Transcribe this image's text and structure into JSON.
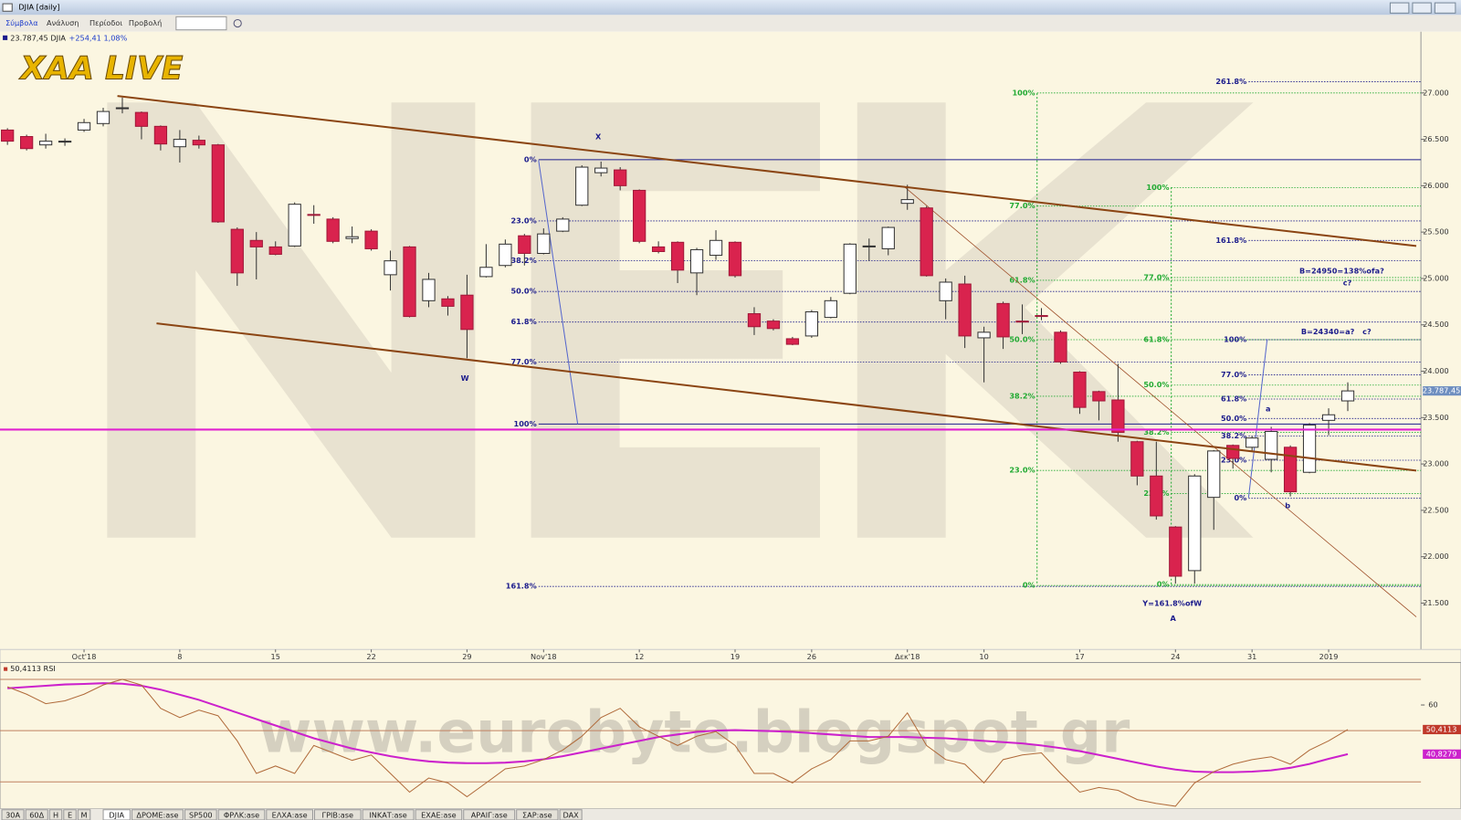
{
  "window": {
    "title": "DJIA [daily]",
    "menu": [
      "Σύμβολα",
      "Ανάλυση",
      "Περίοδοι",
      "Προβολή"
    ],
    "tabs": [
      "30A",
      "60Δ",
      "H",
      "E",
      "M",
      "DJIA",
      "ΔΡΟΜΕ:ase",
      "SP500",
      "ΦΡΛΚ:ase",
      "ΕΛΧΑ:ase",
      "ΓΡΙΒ:ase",
      "ΙΝΚΑΤ:ase",
      "ΕΧΑΕ:ase",
      "ΑΡΑΙΓ:ase",
      "ΣΑΡ:ase",
      "DAX"
    ]
  },
  "quote": {
    "price": "23.787,45 DJIA",
    "change": "+254,41 1,08%"
  },
  "logo": "XAA LIVE",
  "watermark": "www.eurobyte.blogspot.gr",
  "chart_data": {
    "type": "candlestick",
    "open": [
      26600,
      26530,
      26440,
      26470,
      26600,
      26670,
      26830,
      26790,
      26640,
      26420,
      26490,
      26440,
      25530,
      25410,
      25340,
      25350,
      25690,
      25640,
      25430,
      25510,
      25040,
      25340,
      24760,
      24780,
      24820,
      25020,
      25140,
      25460,
      25270,
      25510,
      25790,
      26140,
      26170,
      25950,
      25340,
      25390,
      25060,
      25250,
      25390,
      24620,
      24540,
      24350,
      24380,
      24580,
      24840,
      25340,
      25320,
      25810,
      25760,
      24760,
      24940,
      24360,
      24730,
      24540,
      24600,
      24420,
      23990,
      23780,
      23690,
      23240,
      22870,
      22320,
      21850,
      22640,
      23200,
      23180,
      23050,
      23180,
      22910,
      23470,
      23680
    ],
    "high": [
      26620,
      26550,
      26560,
      26510,
      26720,
      26840,
      26950,
      26800,
      26650,
      26600,
      26540,
      26450,
      25550,
      25500,
      25400,
      25820,
      25790,
      25660,
      25560,
      25530,
      25300,
      25350,
      25060,
      24810,
      25040,
      25370,
      25420,
      25480,
      25540,
      25660,
      26220,
      26260,
      26200,
      25960,
      25400,
      25400,
      25330,
      25520,
      25400,
      24690,
      24560,
      24370,
      24660,
      24800,
      25380,
      25430,
      25560,
      26010,
      25780,
      25000,
      25030,
      24480,
      24750,
      24720,
      24680,
      24440,
      24000,
      23790,
      24080,
      23250,
      23240,
      22330,
      22890,
      23150,
      23210,
      23300,
      23400,
      23200,
      23440,
      23600,
      23880
    ],
    "low": [
      26440,
      26380,
      26400,
      26430,
      26580,
      26640,
      26780,
      26500,
      26380,
      26250,
      26400,
      25600,
      24920,
      24990,
      25250,
      25340,
      25590,
      25380,
      25380,
      25300,
      24870,
      24580,
      24690,
      24600,
      24140,
      25010,
      25120,
      25140,
      25260,
      25500,
      25780,
      26100,
      25950,
      25380,
      25270,
      24950,
      24820,
      25200,
      25010,
      24390,
      24440,
      24280,
      24360,
      24570,
      24830,
      25190,
      25250,
      25740,
      25020,
      24560,
      24250,
      23880,
      24240,
      24400,
      24550,
      24080,
      23540,
      23470,
      23240,
      22770,
      22400,
      21710,
      21710,
      22290,
      22950,
      23130,
      22910,
      22650,
      22900,
      23310,
      23570
    ],
    "close": [
      26480,
      26400,
      26480,
      26480,
      26680,
      26800,
      26840,
      26640,
      26450,
      26500,
      26440,
      25610,
      25060,
      25340,
      25260,
      25800,
      25680,
      25400,
      25450,
      25320,
      25190,
      24590,
      24990,
      24700,
      24450,
      25120,
      25370,
      25270,
      25480,
      25640,
      26200,
      26190,
      26000,
      25400,
      25290,
      25090,
      25310,
      25410,
      25030,
      24480,
      24460,
      24290,
      24640,
      24760,
      25370,
      25350,
      25550,
      25850,
      25030,
      24960,
      24380,
      24420,
      24370,
      24530,
      24590,
      24100,
      23610,
      23680,
      23340,
      22870,
      22440,
      21790,
      22870,
      23140,
      23060,
      23280,
      23350,
      22700,
      23420,
      23530,
      23787.45
    ],
    "last_label": "23.787,45",
    "up_color": "#ffffff",
    "down_color": "#d9234e",
    "xticks": [
      {
        "value": 4,
        "label": "Oct'18"
      },
      {
        "value": 9,
        "label": "8"
      },
      {
        "value": 14,
        "label": "15"
      },
      {
        "value": 19,
        "label": "22"
      },
      {
        "value": 24,
        "label": "29"
      },
      {
        "value": 28,
        "label": "Nov'18"
      },
      {
        "value": 33,
        "label": "12"
      },
      {
        "value": 38,
        "label": "19"
      },
      {
        "value": 42,
        "label": "26"
      },
      {
        "value": 47,
        "label": "Δεκ'18"
      },
      {
        "value": 51,
        "label": "10"
      },
      {
        "value": 56,
        "label": "17"
      },
      {
        "value": 61,
        "label": "24"
      },
      {
        "value": 65,
        "label": "31"
      },
      {
        "value": 69,
        "label": "2019"
      }
    ],
    "ylim": [
      21000,
      27600
    ],
    "yticks": [
      {
        "value": 21500,
        "label": "21.500"
      },
      {
        "value": 22000,
        "label": "22.000"
      },
      {
        "value": 22500,
        "label": "22.500"
      },
      {
        "value": 23000,
        "label": "23.000"
      },
      {
        "value": 23500,
        "label": "23.500"
      },
      {
        "value": 24000,
        "label": "24.000"
      },
      {
        "value": 24500,
        "label": "24.500"
      },
      {
        "value": 25000,
        "label": "25.000"
      },
      {
        "value": 25500,
        "label": "25.500"
      },
      {
        "value": 26000,
        "label": "26.000"
      },
      {
        "value": 26500,
        "label": "26.500"
      },
      {
        "value": 27000,
        "label": "27.000"
      }
    ],
    "fib_sets": [
      {
        "color": "#1c1c8c",
        "levels": [
          {
            "value": 26280,
            "label": "0%"
          },
          {
            "value": 25620,
            "label": "23.0%"
          },
          {
            "value": 25190,
            "label": "38.2%"
          },
          {
            "value": 24860,
            "label": "50.0%"
          },
          {
            "value": 24530,
            "label": "61.8%"
          },
          {
            "value": 24100,
            "label": "77.0%"
          },
          {
            "value": 23430,
            "label": "100%"
          },
          {
            "value": 21680,
            "label": "161.8%"
          }
        ]
      },
      {
        "color": "#22aa33",
        "levels": [
          {
            "value": 27000,
            "label": "100%"
          },
          {
            "value": 25780,
            "label": "77.0%"
          },
          {
            "value": 24980,
            "label": "61.8%"
          },
          {
            "value": 24340,
            "label": "50.0%"
          },
          {
            "value": 23730,
            "label": "38.2%"
          },
          {
            "value": 22930,
            "label": "23.0%"
          },
          {
            "value": 21690,
            "label": "0%"
          }
        ]
      },
      {
        "color": "#22aa33",
        "levels": [
          {
            "value": 25980,
            "label": "100%"
          },
          {
            "value": 25010,
            "label": "77.0%"
          },
          {
            "value": 24340,
            "label": "61.8%"
          },
          {
            "value": 23850,
            "label": "50.0%"
          },
          {
            "value": 23340,
            "label": "38.2%"
          },
          {
            "value": 22680,
            "label": "23.0%"
          },
          {
            "value": 21700,
            "label": "0%"
          }
        ]
      },
      {
        "color": "#1c1c8c",
        "levels": [
          {
            "value": 27120,
            "label": "261.8%"
          },
          {
            "value": 25410,
            "label": "161.8%"
          },
          {
            "value": 24340,
            "label": "100%"
          },
          {
            "value": 23960,
            "label": "77.0%"
          },
          {
            "value": 23700,
            "label": "61.8%"
          },
          {
            "value": 23490,
            "label": "50.0%"
          },
          {
            "value": 23300,
            "label": "38.2%"
          },
          {
            "value": 23040,
            "label": "23.0%"
          },
          {
            "value": 22630,
            "label": "0%"
          }
        ]
      }
    ],
    "annotations": [
      "X",
      "W",
      "A",
      "a",
      "b",
      "c?",
      "c?",
      "Y=161.8%ofW",
      "B=24950=138%ofa?",
      "B=24340=a?"
    ],
    "rsi": {
      "label": "50,4113 RSI",
      "ylim": [
        19.5,
        76.2
      ],
      "yticks": [
        60
      ],
      "levels": [
        70,
        50,
        30
      ],
      "color": "#b06a3a",
      "values": [
        67.1,
        64.2,
        60.5,
        61.6,
        64.2,
        67.8,
        70.0,
        67.8,
        58.7,
        55.1,
        58.0,
        55.8,
        46.0,
        33.3,
        36.2,
        33.3,
        44.2,
        41.3,
        38.4,
        40.5,
        33.3,
        26.0,
        31.5,
        29.6,
        24.2,
        29.6,
        35.1,
        36.2,
        38.7,
        42.4,
        47.8,
        55.1,
        58.7,
        51.5,
        47.8,
        44.2,
        47.8,
        49.6,
        44.2,
        33.3,
        33.3,
        29.6,
        35.1,
        38.7,
        46.0,
        46.0,
        47.8,
        56.9,
        44.2,
        38.7,
        36.9,
        29.6,
        38.7,
        40.5,
        41.3,
        33.3,
        26.0,
        27.8,
        26.7,
        23.1,
        21.6,
        20.5,
        29.6,
        34.0,
        36.9,
        38.7,
        39.8,
        36.9,
        42.4,
        46.0,
        50.4113
      ],
      "value_label": "50,4113",
      "ma": {
        "color": "#cc22cc",
        "values": [
          66.5,
          67,
          67.5,
          68,
          68.2,
          68.5,
          68.3,
          67.5,
          66,
          64,
          62,
          59.5,
          57,
          54.5,
          52,
          49.5,
          47,
          45,
          43,
          41.5,
          40,
          38.8,
          38,
          37.5,
          37.3,
          37.3,
          37.5,
          38,
          38.8,
          40,
          41.5,
          43,
          44.5,
          46,
          47.5,
          48.5,
          49.5,
          50,
          50.2,
          50,
          49.8,
          49.5,
          49,
          48.5,
          48,
          47.5,
          47.5,
          47.5,
          47.2,
          47,
          46.5,
          46,
          45.5,
          45,
          44.2,
          43.2,
          42,
          40.5,
          39,
          37.5,
          36,
          34.8,
          34,
          33.8,
          33.8,
          34,
          34.5,
          35.5,
          37,
          39,
          40.8279
        ],
        "value_label": "40,8279"
      }
    }
  }
}
